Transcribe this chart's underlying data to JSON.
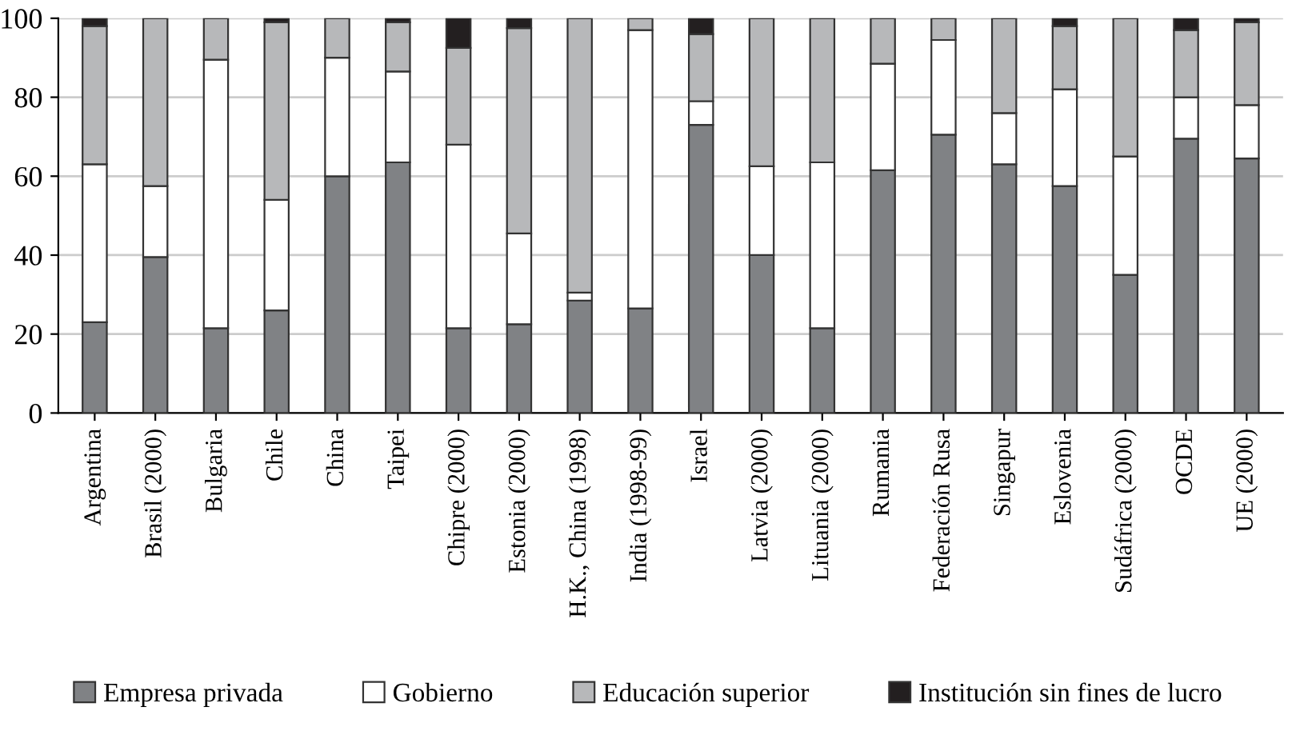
{
  "chart_data": {
    "type": "bar",
    "stacked": true,
    "categories": [
      "Argentina",
      "Brasil (2000)",
      "Bulgaria",
      "Chile",
      "China",
      "Taipei",
      "Chipre (2000)",
      "Estonia (2000)",
      "H.K., China (1998)",
      "India (1998-99)",
      "Israel",
      "Latvia (2000)",
      "Lituania (2000)",
      "Rumania",
      "Federación Rusa",
      "Singapur",
      "Eslovenia",
      "Sudáfrica (2000)",
      "OCDE",
      "UE (2000)"
    ],
    "series": [
      {
        "name": "Empresa privada",
        "color": "#808285",
        "values": [
          23,
          39.5,
          21.5,
          26,
          60,
          63.5,
          21.5,
          22.5,
          28.5,
          26.5,
          73,
          40,
          21.5,
          61.5,
          70.5,
          63,
          57.5,
          35,
          69.5,
          64.5
        ]
      },
      {
        "name": "Gobierno",
        "color": "#ffffff",
        "values": [
          40,
          18,
          68,
          28,
          30,
          23,
          46.5,
          23,
          2,
          70.5,
          6,
          22.5,
          42,
          27,
          24,
          13,
          24.5,
          30,
          10.5,
          13.5
        ]
      },
      {
        "name": "Educación superior",
        "color": "#b7b8ba",
        "values": [
          35,
          42.5,
          10.5,
          45,
          10,
          12.5,
          24.5,
          52,
          69.5,
          3,
          17,
          37.5,
          36.5,
          11.5,
          5.5,
          24,
          16,
          35,
          17,
          21
        ]
      },
      {
        "name": "Institución sin fines de lucro",
        "color": "#231f20",
        "values": [
          2,
          null,
          null,
          1,
          null,
          1,
          7.5,
          2.5,
          null,
          null,
          4,
          null,
          null,
          null,
          null,
          null,
          2,
          null,
          3,
          1
        ]
      }
    ],
    "ylim": [
      0,
      100
    ],
    "yticks": [
      0,
      20,
      40,
      60,
      80,
      100
    ],
    "grid": "y",
    "legend": "bottom"
  }
}
